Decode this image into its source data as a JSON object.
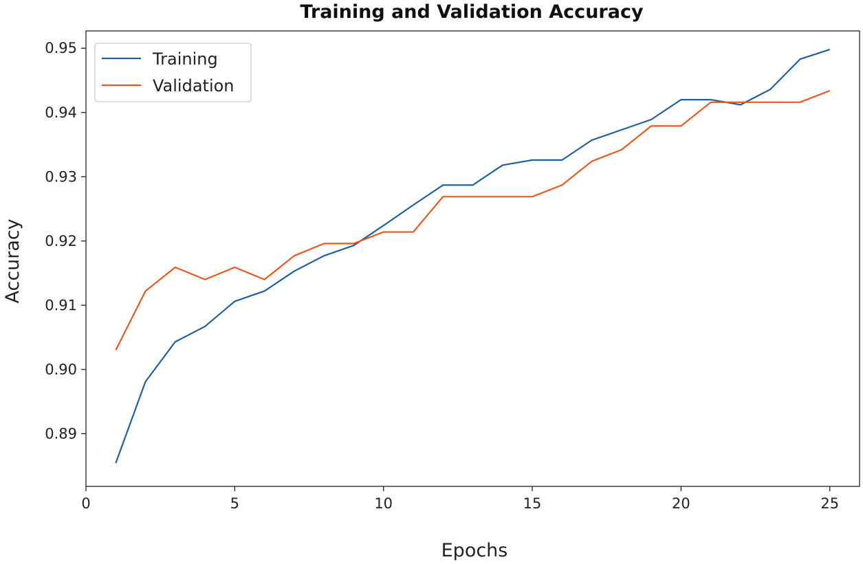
{
  "chart_data": {
    "type": "line",
    "title": "Training and Validation Accuracy",
    "xlabel": "Epochs",
    "ylabel": "Accuracy",
    "xlim": [
      0,
      26
    ],
    "ylim": [
      0.8818,
      0.9527
    ],
    "xticks": [
      0,
      5,
      10,
      15,
      20,
      25
    ],
    "yticks": [
      0.89,
      0.9,
      0.91,
      0.92,
      0.93,
      0.94,
      0.95
    ],
    "ytick_labels": [
      "0.89",
      "0.90",
      "0.91",
      "0.92",
      "0.93",
      "0.94",
      "0.95"
    ],
    "grid": false,
    "legend_position": "top-left",
    "x": [
      1,
      2,
      3,
      4,
      5,
      6,
      7,
      8,
      9,
      10,
      11,
      12,
      13,
      14,
      15,
      16,
      17,
      18,
      19,
      20,
      21,
      22,
      23,
      24,
      25
    ],
    "series": [
      {
        "name": "Training",
        "color": "#1f5f9e",
        "values": [
          0.8854,
          0.8981,
          0.9043,
          0.9067,
          0.9106,
          0.9122,
          0.9153,
          0.9177,
          0.9193,
          0.9224,
          0.9256,
          0.9287,
          0.9287,
          0.9318,
          0.9326,
          0.9326,
          0.9357,
          0.9373,
          0.9389,
          0.942,
          0.942,
          0.9412,
          0.9436,
          0.9483,
          0.9498
        ]
      },
      {
        "name": "Validation",
        "color": "#e8571b",
        "values": [
          0.903,
          0.9122,
          0.9159,
          0.914,
          0.9159,
          0.914,
          0.9177,
          0.9196,
          0.9196,
          0.9214,
          0.9214,
          0.9269,
          0.9269,
          0.9269,
          0.9269,
          0.9287,
          0.9324,
          0.9342,
          0.9379,
          0.9379,
          0.9416,
          0.9416,
          0.9416,
          0.9416,
          0.9434
        ]
      }
    ]
  }
}
